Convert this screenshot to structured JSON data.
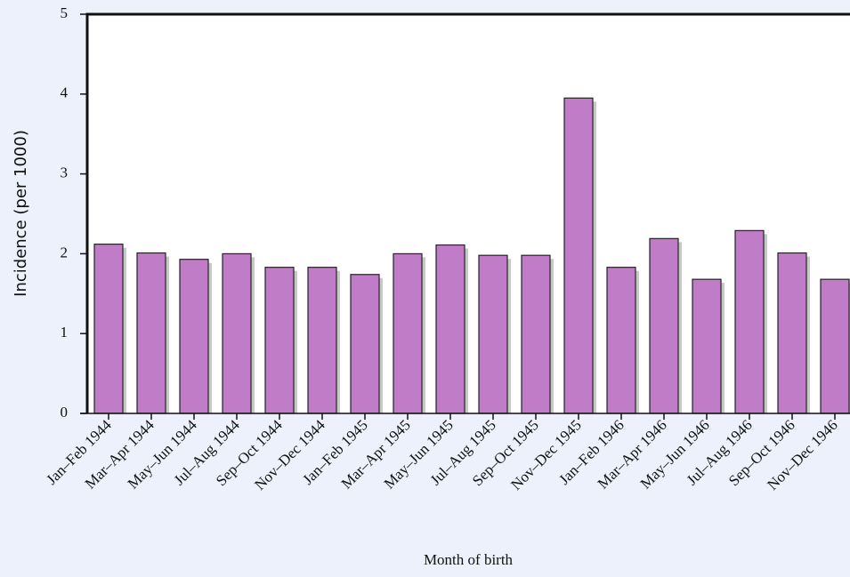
{
  "chart_data": {
    "type": "bar",
    "x_label": "Month of birth",
    "y_label": "Incidence (per 1000)",
    "categories": [
      "Jan–Feb 1944",
      "Mar–Apr 1944",
      "May–Jun 1944",
      "Jul–Aug 1944",
      "Sep–Oct 1944",
      "Nov–Dec 1944",
      "Jan–Feb 1945",
      "Mar–Apr 1945",
      "May–Jun 1945",
      "Jul–Aug 1945",
      "Sep–Oct 1945",
      "Nov–Dec 1945",
      "Jan–Feb 1946",
      "Mar–Apr 1946",
      "May–Jun 1946",
      "Jul–Aug 1946",
      "Sep–Oct 1946",
      "Nov–Dec 1946"
    ],
    "values": [
      2.12,
      2.01,
      1.93,
      2.0,
      1.83,
      1.83,
      1.74,
      2.0,
      2.11,
      1.98,
      1.98,
      3.95,
      1.83,
      2.19,
      1.68,
      2.29,
      2.01,
      1.68
    ],
    "color": "#c07cc7",
    "ylim": [
      0,
      5
    ],
    "yticks": [
      0,
      1,
      2,
      3,
      4,
      5
    ]
  }
}
